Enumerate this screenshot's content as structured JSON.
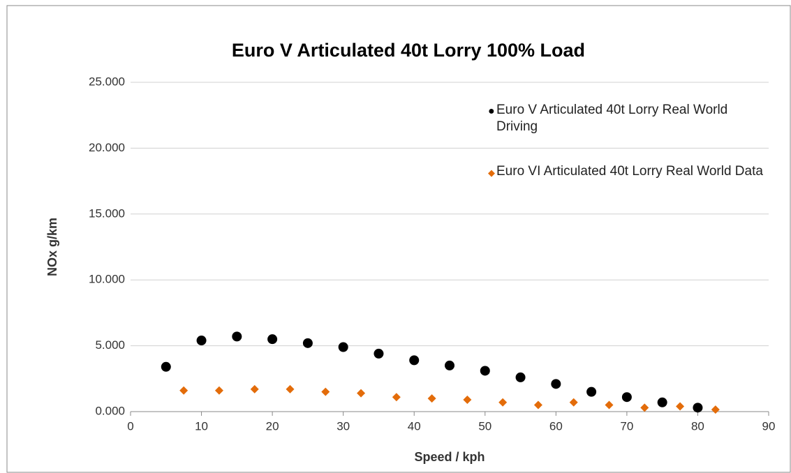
{
  "chart_data": {
    "type": "scatter",
    "title": "Euro V Articulated 40t Lorry 100% Load",
    "x_label": "Speed / kph",
    "y_label": "NOx  g/km",
    "xlim": [
      0,
      90
    ],
    "xticks": [
      0,
      10,
      20,
      30,
      40,
      50,
      60,
      70,
      80,
      90
    ],
    "ylim": [
      0,
      25
    ],
    "yticks": [
      {
        "value": 0,
        "label": "0.000"
      },
      {
        "value": 5,
        "label": "5.000"
      },
      {
        "value": 10,
        "label": "10.000"
      },
      {
        "value": 15,
        "label": "15.000"
      },
      {
        "value": 20,
        "label": "20.000"
      },
      {
        "value": 25,
        "label": "25.000"
      }
    ],
    "grid": true,
    "legend": "upper right",
    "series": [
      {
        "name": "Euro V Articulated 40t Lorry Real World Driving",
        "color": "#000000",
        "marker": "circle",
        "x": [
          5,
          10,
          15,
          20,
          25,
          30,
          35,
          40,
          45,
          50,
          55,
          60,
          65,
          70,
          75,
          80
        ],
        "values": [
          3.4,
          5.4,
          5.7,
          5.5,
          5.2,
          4.9,
          4.4,
          3.9,
          3.5,
          3.1,
          2.6,
          2.1,
          1.5,
          1.1,
          0.7,
          0.3
        ]
      },
      {
        "name": "Euro VI Articulated 40t Lorry Real World Data",
        "color": "#e36c0a",
        "marker": "diamond",
        "x": [
          7.5,
          12.5,
          17.5,
          22.5,
          27.5,
          32.5,
          37.5,
          42.5,
          47.5,
          52.5,
          57.5,
          62.5,
          67.5,
          72.5,
          77.5,
          82.5
        ],
        "values": [
          1.6,
          1.6,
          1.7,
          1.7,
          1.5,
          1.4,
          1.1,
          1.0,
          0.9,
          0.7,
          0.5,
          0.7,
          0.5,
          0.3,
          0.4,
          0.15
        ]
      }
    ]
  }
}
